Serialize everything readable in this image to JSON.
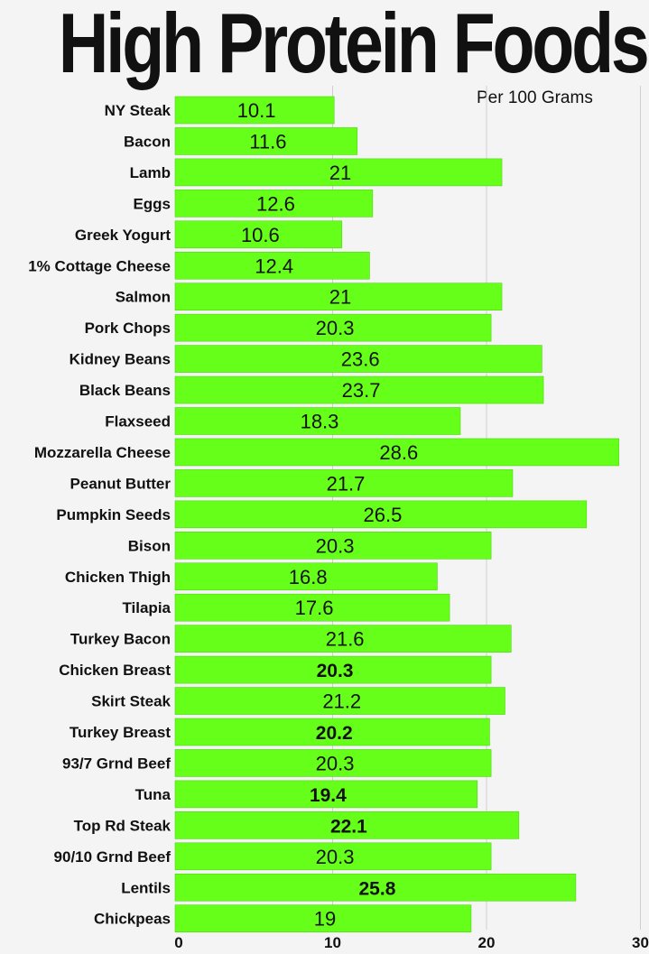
{
  "chart_data": {
    "type": "bar",
    "orientation": "horizontal",
    "title": "High Protein Foods",
    "subtitle": "Per 100 Grams",
    "xlabel": "",
    "ylabel": "",
    "xlim": [
      0,
      30
    ],
    "xticks": [
      "0",
      "10",
      "20",
      "30"
    ],
    "grid": true,
    "bar_color": "#66ff1a",
    "categories": [
      "NY Steak",
      "Bacon",
      "Lamb",
      "Eggs",
      "Greek Yogurt",
      "1% Cottage Cheese",
      "Salmon",
      "Pork Chops",
      "Kidney Beans",
      "Black Beans",
      "Flaxseed",
      "Mozzarella Cheese",
      "Peanut Butter",
      "Pumpkin Seeds",
      "Bison",
      "Chicken Thigh",
      "Tilapia",
      "Turkey Bacon",
      "Chicken Breast",
      "Skirt Steak",
      "Turkey Breast",
      "93/7 Grnd Beef",
      "Tuna",
      "Top Rd Steak",
      "90/10 Grnd Beef",
      "Lentils",
      "Chickpeas"
    ],
    "values": [
      10.1,
      11.6,
      21,
      12.6,
      10.6,
      12.4,
      21,
      20.3,
      23.6,
      23.7,
      18.3,
      28.6,
      21.7,
      26.5,
      20.3,
      16.8,
      17.6,
      21.6,
      20.3,
      21.2,
      20.2,
      20.3,
      19.4,
      22.1,
      20.3,
      25.8,
      19
    ],
    "data_labels": [
      "10.1",
      "11.6",
      "21",
      "12.6",
      "10.6",
      "12.4",
      "21",
      "20.3",
      "23.6",
      "23.7",
      "18.3",
      "28.6",
      "21.7",
      "26.5",
      "20.3",
      "16.8",
      "17.6",
      "21.6",
      "20.3",
      "21.2",
      "20.2",
      "20.3",
      "19.4",
      "22.1",
      "20.3",
      "25.8",
      "19"
    ],
    "bold_labels": [
      false,
      false,
      false,
      false,
      false,
      false,
      false,
      false,
      false,
      false,
      false,
      false,
      false,
      false,
      false,
      false,
      false,
      false,
      true,
      false,
      true,
      false,
      true,
      true,
      false,
      true,
      false
    ]
  }
}
